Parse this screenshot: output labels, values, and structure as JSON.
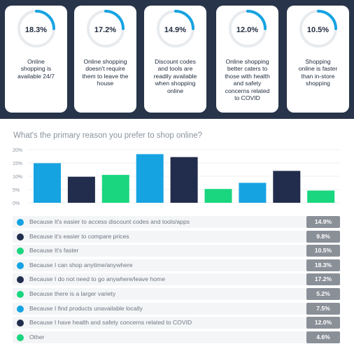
{
  "colors": {
    "background": "#273449",
    "cyan": "#16a3e2",
    "navy": "#222d4d",
    "green": "#19d67f",
    "ring_track": "#e8ebee",
    "value_badge": "#8a9098"
  },
  "cards": [
    {
      "value": "18.3%",
      "line1": "Online",
      "line2": "shopping is",
      "line3": "available 24/7",
      "line4": "",
      "line5": ""
    },
    {
      "value": "17.2%",
      "line1": "Online shopping",
      "line2": "doesn't require",
      "line3": "them to leave the",
      "line4": "house",
      "line5": ""
    },
    {
      "value": "14.9%",
      "line1": "Discount codes",
      "line2": "and tools are",
      "line3": "readily available",
      "line4": "when shopping",
      "line5": "online"
    },
    {
      "value": "12.0%",
      "line1": "Online shopping",
      "line2": "better caters to",
      "line3": "those with health",
      "line4": "and safety",
      "line5": "concerns related"
    },
    {
      "value": "10.5%",
      "line1": "Shopping",
      "line2": "online is faster",
      "line3": "than in-store",
      "line4": "shopping",
      "line5": ""
    }
  ],
  "card4_line6": "to COVID",
  "chart_data": {
    "type": "bar",
    "title": "What's the primary reason you prefer to shop online?",
    "ylim": [
      0,
      20
    ],
    "y_ticks": [
      "0%",
      "5%",
      "10%",
      "15%",
      "20%"
    ],
    "grid": true,
    "legend_placement": "bottom",
    "categories": [
      "Because It's easier to access discount codes and tools/apps",
      "Because it's easier to compare prices",
      "Because It's faster",
      "Because I can shop anytime/anywhere",
      "Because I do not need to go anywhere/leave home",
      "Because there is a larger variety",
      "Because I find products unavailable locally",
      "Because I have health and safety concerns related to COVID",
      "Other"
    ],
    "values": [
      14.9,
      9.8,
      10.5,
      18.3,
      17.2,
      5.2,
      7.5,
      12.0,
      4.6
    ],
    "value_labels": [
      "14.9%",
      "9.8%",
      "10.5%",
      "18.3%",
      "17.2%",
      "5.2%",
      "7.5%",
      "12.0%",
      "4.6%"
    ],
    "bar_colors": [
      "#16a3e2",
      "#222d4d",
      "#19d67f",
      "#16a3e2",
      "#222d4d",
      "#19d67f",
      "#16a3e2",
      "#222d4d",
      "#19d67f"
    ]
  }
}
